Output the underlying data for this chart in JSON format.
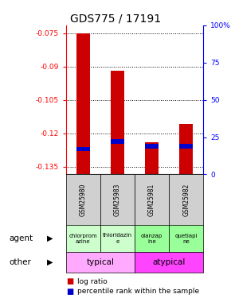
{
  "title": "GDS775 / 17191",
  "samples": [
    "GSM25980",
    "GSM25983",
    "GSM25981",
    "GSM25982"
  ],
  "log_ratios": [
    -0.075,
    -0.092,
    -0.124,
    -0.116
  ],
  "percentile_ranks": [
    0.17,
    0.22,
    0.19,
    0.19
  ],
  "ylim_min": -0.1385,
  "ylim_max": -0.0715,
  "yticks": [
    -0.075,
    -0.09,
    -0.105,
    -0.12,
    -0.135
  ],
  "ytick_labels": [
    "-0.075",
    "-0.09",
    "-0.105",
    "-0.12",
    "-0.135"
  ],
  "y2ticks_pct": [
    0,
    25,
    50,
    75,
    100
  ],
  "y2tick_labels": [
    "0",
    "25",
    "50",
    "75",
    "100%"
  ],
  "bar_bottom": -0.1385,
  "bar_color": "#cc0000",
  "percentile_color": "#0000cc",
  "agent_labels": [
    "chlorprom\nazine",
    "thioridazin\ne",
    "olanzap\nine",
    "quetiapi\nne"
  ],
  "agent_colors": [
    "#ccffcc",
    "#ccffcc",
    "#99ff99",
    "#99ff99"
  ],
  "typical_color": "#ffaaff",
  "atypical_color": "#ff44ff",
  "legend_log_ratio_color": "#cc0000",
  "legend_percentile_color": "#0000cc",
  "title_fontsize": 10,
  "bar_width": 0.4
}
